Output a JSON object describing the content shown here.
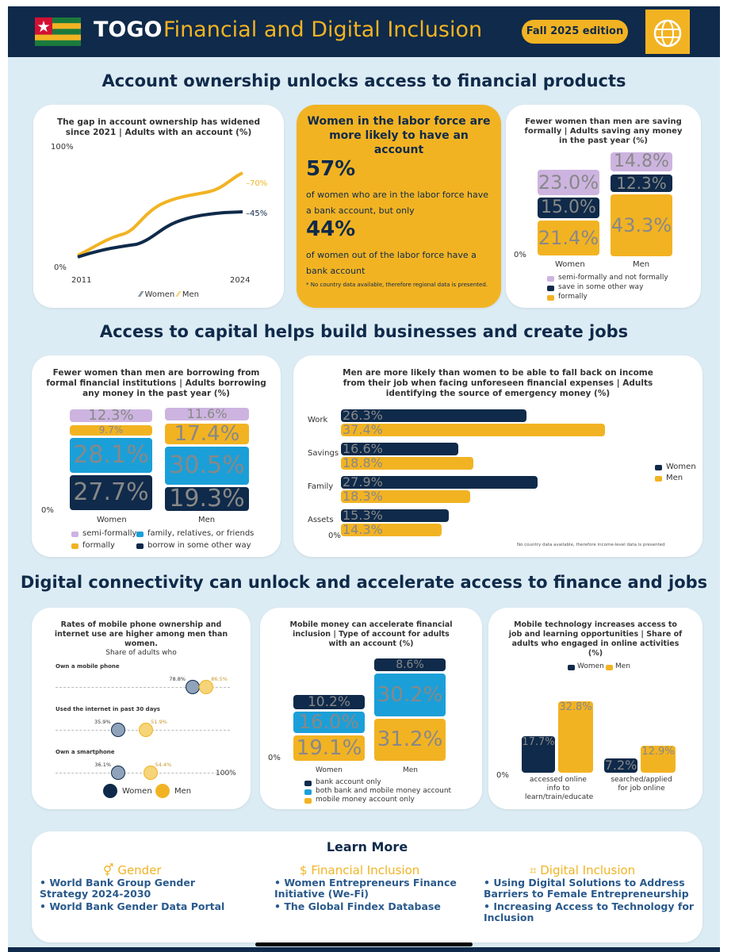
{
  "header": {
    "country": "TOGO",
    "title": "Financial and Digital Inclusion",
    "edition": "Fall 2025 edition"
  },
  "sections": {
    "s1": "Account ownership unlocks access to financial products",
    "s2": "Access to capital helps build businesses and create jobs",
    "s3": "Digital connectivity can unlock and accelerate access to finance and jobs"
  },
  "account_chart": {
    "title": "The gap in account ownership has widened since 2021 | Adults with an account (%)",
    "y_top": "100%",
    "y_bottom": "0%",
    "x_start": "2011",
    "x_end": "2024",
    "women_label": "45%",
    "men_label": "70%",
    "legend_women": "Women",
    "legend_men": "Men"
  },
  "labor_box": {
    "heading": "Women in the labor force are more likely to have an account",
    "stat1": "57%",
    "text1": "of women who are in the labor force have a bank account, but only",
    "stat2": "44%",
    "text2": "of women out of the labor force have a bank account",
    "note": "* No country data available, therefore regional data is presented."
  },
  "saving_chart": {
    "title": "Fewer women than men are saving formally | Adults saving any money in the past year (%)",
    "zero": "0%",
    "women": {
      "label": "Women",
      "formal": "21.4%",
      "other": "15.0%",
      "semi": "23.0%"
    },
    "men": {
      "label": "Men",
      "formal": "43.3%",
      "other": "12.3%",
      "semi": "14.8%"
    },
    "legend": [
      "semi-formally and not formally",
      "save in some other way",
      "formally"
    ]
  },
  "borrow_chart": {
    "title": "Fewer women than men are borrowing from formal financial institutions | Adults borrowing any money in the past year (%)",
    "zero": "0%",
    "women": {
      "label": "Women",
      "other": "27.7%",
      "family": "28.1%",
      "formal": "9.7%",
      "semi": "12.3%"
    },
    "men": {
      "label": "Men",
      "other": "19.3%",
      "family": "30.5%",
      "formal": "17.4%",
      "semi": "11.6%"
    },
    "legend": [
      "semi-formally",
      "family, relatives, or friends",
      "formally",
      "borrow in some other way"
    ]
  },
  "emergency_chart": {
    "title": "Men are more likely than women to be able to fall back on income from their job when facing unforeseen financial expenses | Adults identifying the source of emergency money (%)",
    "zero": "0%",
    "note": "No country data available, therefore income-level data is presented",
    "legend_women": "Women",
    "legend_men": "Men",
    "categories": [
      {
        "name": "Work",
        "women": "26.3%",
        "men": "37.4%"
      },
      {
        "name": "Savings",
        "women": "16.6%",
        "men": "18.8%"
      },
      {
        "name": "Family",
        "women": "27.9%",
        "men": "18.3%"
      },
      {
        "name": "Assets",
        "women": "15.3%",
        "men": "14.3%"
      }
    ]
  },
  "phone_chart": {
    "title": "Rates of mobile phone ownership and internet use are higher among men than women.",
    "subtitle": "Share of adults who",
    "rows": [
      {
        "label": "Own a mobile phone",
        "women": "78.8%",
        "men": "86.5%"
      },
      {
        "label": "Used the internet in past 30 days",
        "women": "35.9%",
        "men": "51.9%"
      },
      {
        "label": "Own a smartphone",
        "women": "36.1%",
        "men": "54.4%"
      }
    ],
    "axis_end": "100%",
    "legend_women": "Women",
    "legend_men": "Men"
  },
  "mobile_money_chart": {
    "title": "Mobile money can accelerate financial inclusion | Type of account for adults with an account (%)",
    "zero": "0%",
    "women": {
      "label": "Women",
      "mobile": "19.1%",
      "both": "16.0%",
      "bank": "10.2%"
    },
    "men": {
      "label": "Men",
      "mobile": "31.2%",
      "both": "30.2%",
      "bank": "8.6%"
    },
    "legend": [
      "bank account only",
      "both bank and mobile money account",
      "mobile money account only"
    ]
  },
  "online_chart": {
    "title": "Mobile technology increases access to job and learning opportunities | Share of adults who engaged in online activities (%)",
    "legend_women": "Women",
    "legend_men": "Men",
    "zero": "0%",
    "groups": [
      {
        "label": "accessed online info to learn/train/educate",
        "women": "17.7%",
        "men": "32.8%"
      },
      {
        "label": "searched/applied for job online",
        "women": "7.2%",
        "men": "12.9%"
      }
    ]
  },
  "learn_more": {
    "title": "Learn More",
    "gender": {
      "heading": "Gender",
      "links": [
        "World Bank Group Gender Strategy 2024-2030",
        "World Bank Gender Data Portal"
      ]
    },
    "financial": {
      "heading": "Financial Inclusion",
      "links": [
        "Women Entrepreneurs Finance Initiative (We-Fi)",
        "The Global Findex Database"
      ]
    },
    "digital": {
      "heading": "Digital Inclusion",
      "links": [
        "Using Digital Solutions to Address Barriers to Female Entrepreneurship",
        "Increasing Access to Technology for Inclusion"
      ]
    }
  },
  "colors": {
    "navy": "#0f2a4a",
    "gold": "#f2b323",
    "blue": "#1b9fd8",
    "lavender": "#cdb4e0"
  }
}
